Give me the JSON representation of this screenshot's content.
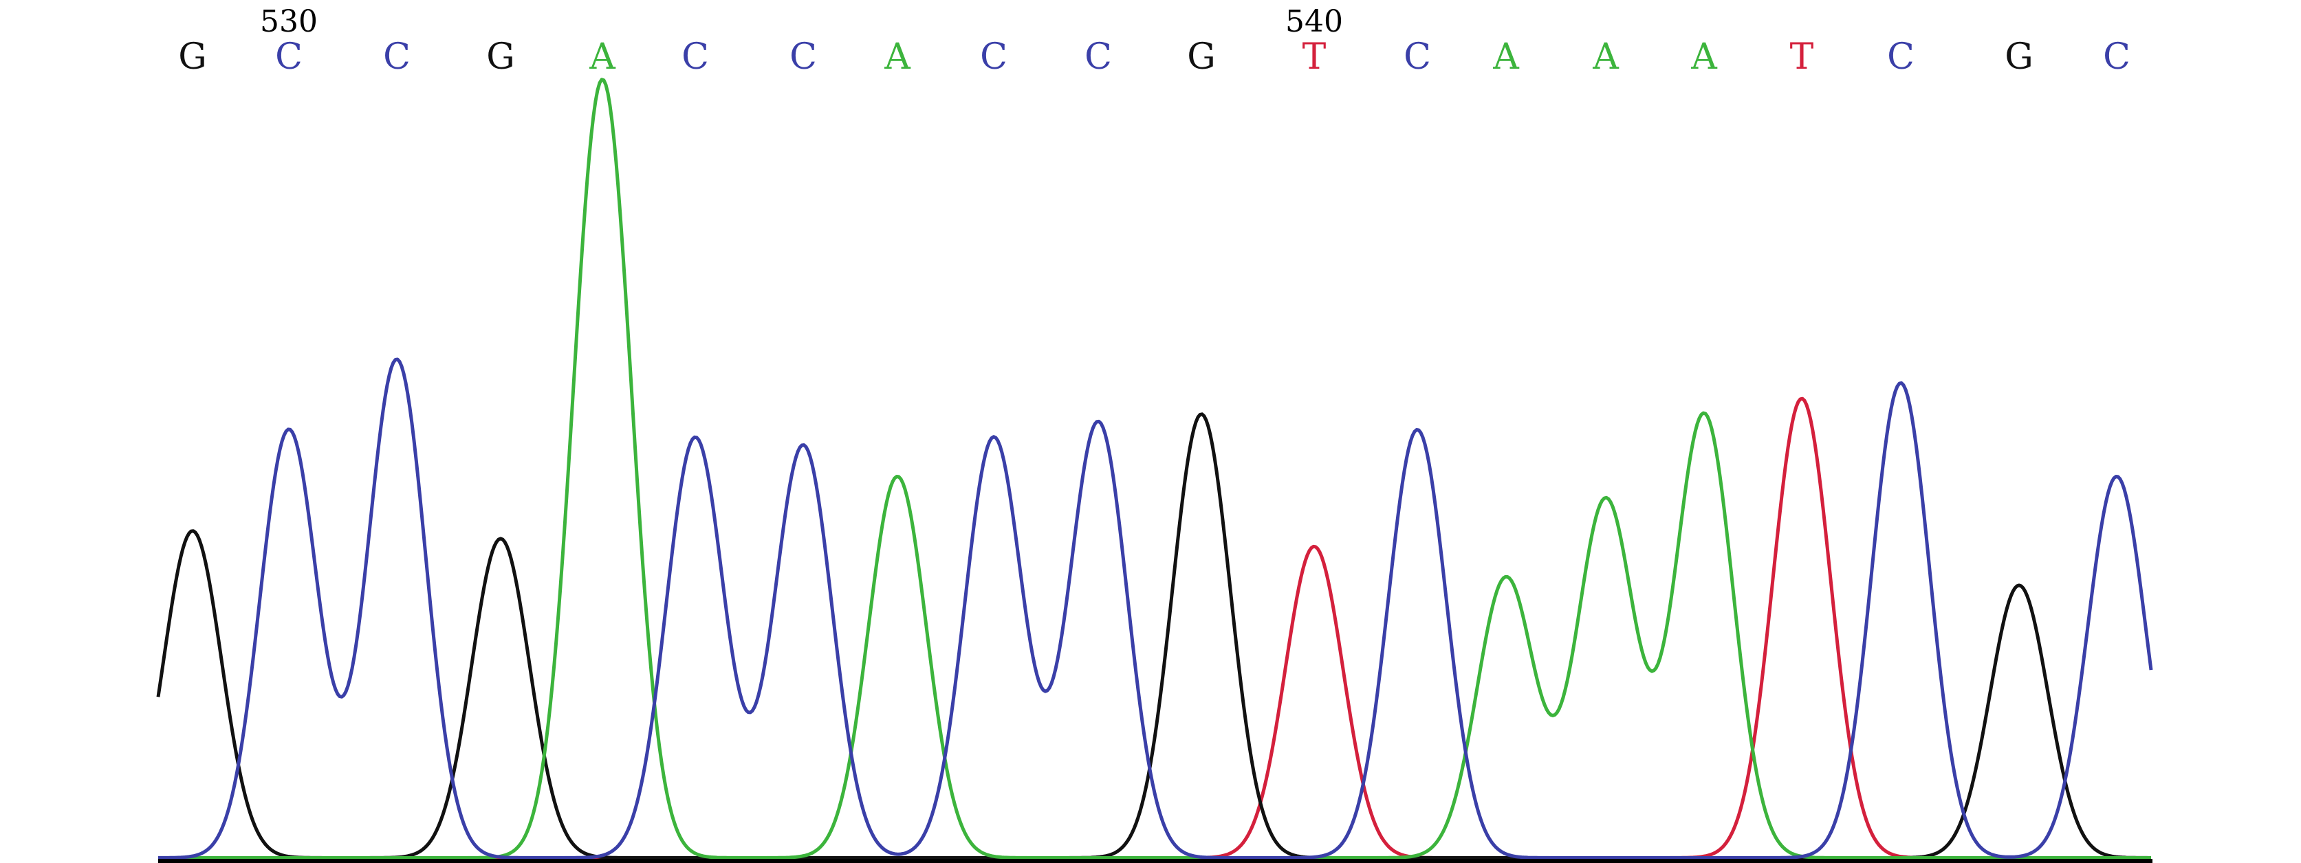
{
  "chart_data": {
    "type": "line",
    "title": "",
    "xlabel": "",
    "ylabel": "",
    "ylim": [
      0,
      1
    ],
    "grid": false,
    "legend": "none",
    "colors": {
      "A": "#3cb43c",
      "C": "#3a3fa8",
      "G": "#111111",
      "T": "#d4203c"
    },
    "position_labels": [
      {
        "label": "530",
        "base_index": 1
      },
      {
        "label": "540",
        "base_index": 11
      }
    ],
    "bases": [
      "G",
      "C",
      "C",
      "G",
      "A",
      "C",
      "C",
      "A",
      "C",
      "C",
      "G",
      "T",
      "C",
      "A",
      "A",
      "A",
      "T",
      "C",
      "G",
      "C"
    ],
    "series": [
      {
        "name": "A",
        "values": [
          0.0,
          0.0,
          0.0,
          0.0,
          1.0,
          0.0,
          0.0,
          0.49,
          0.0,
          0.0,
          0.0,
          0.0,
          0.0,
          0.36,
          0.46,
          0.57,
          0.0,
          0.0,
          0.0,
          0.0
        ]
      },
      {
        "name": "C",
        "values": [
          0.0,
          0.55,
          0.64,
          0.0,
          0.0,
          0.54,
          0.53,
          0.0,
          0.54,
          0.56,
          0.0,
          0.0,
          0.55,
          0.0,
          0.0,
          0.0,
          0.0,
          0.61,
          0.0,
          0.49
        ]
      },
      {
        "name": "G",
        "values": [
          0.42,
          0.0,
          0.0,
          0.41,
          0.0,
          0.0,
          0.0,
          0.0,
          0.0,
          0.0,
          0.57,
          0.0,
          0.0,
          0.0,
          0.0,
          0.0,
          0.0,
          0.0,
          0.35,
          0.0
        ]
      },
      {
        "name": "T",
        "values": [
          0.0,
          0.0,
          0.0,
          0.0,
          0.0,
          0.0,
          0.0,
          0.0,
          0.0,
          0.0,
          0.0,
          0.4,
          0.0,
          0.0,
          0.0,
          0.0,
          0.59,
          0.0,
          0.0,
          0.0
        ]
      }
    ]
  }
}
